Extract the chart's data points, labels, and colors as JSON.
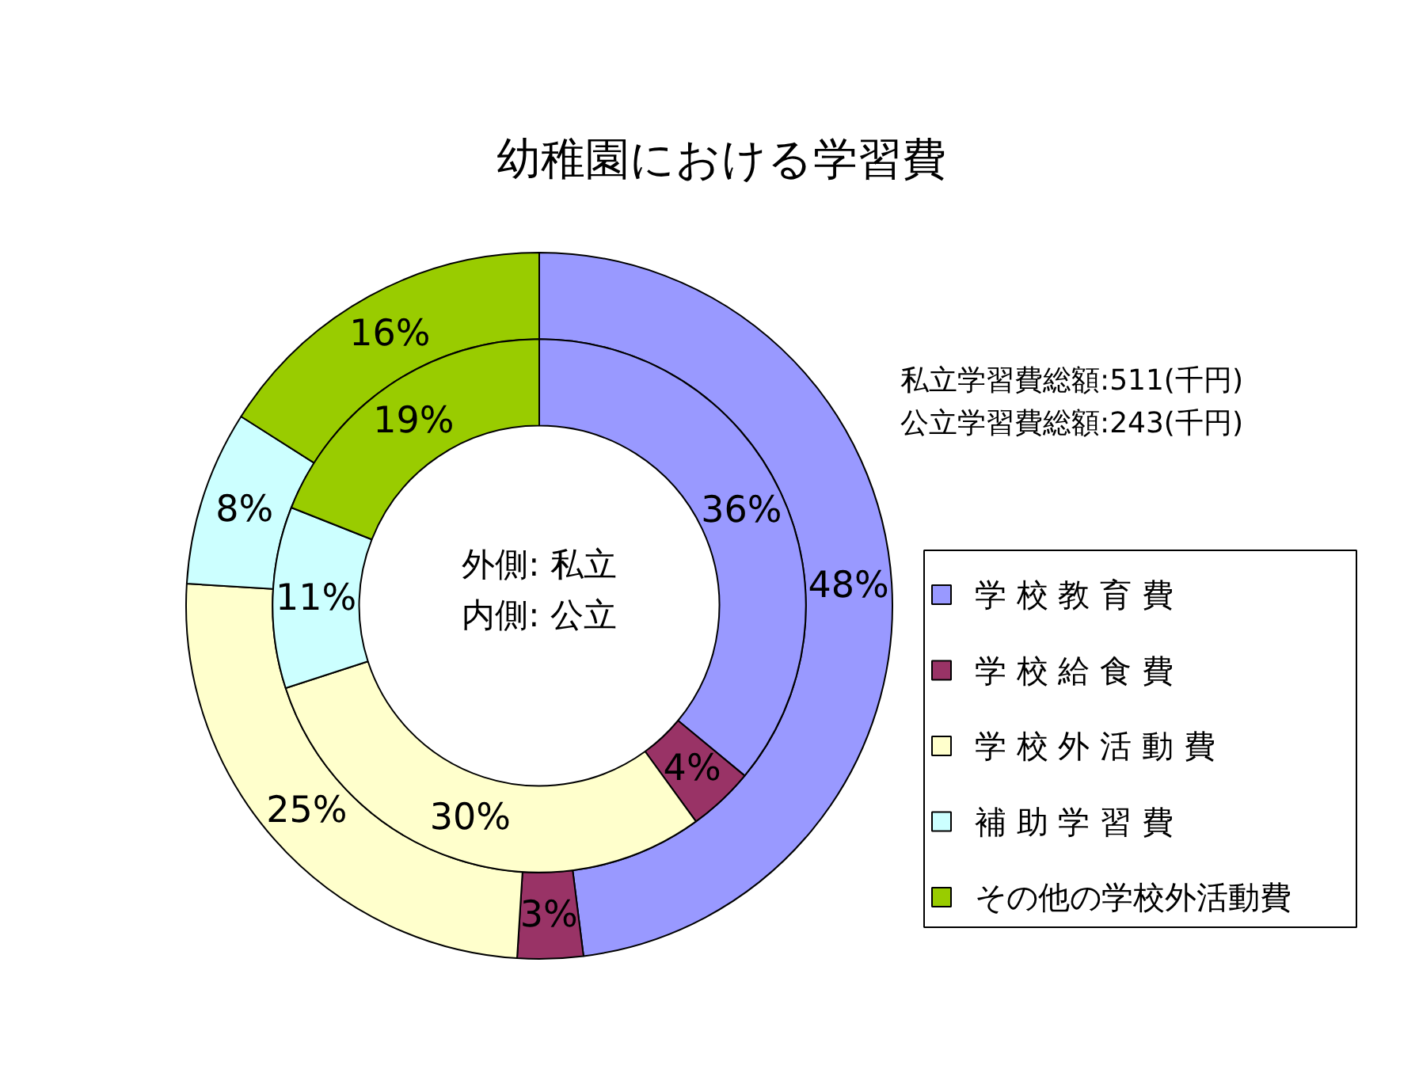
{
  "chart_data": {
    "type": "donut",
    "title": "幼稚園における学習費",
    "categories": [
      "学 校 教 育 費",
      "学 校 給 食 費",
      "学 校 外 活 動 費",
      "補 助 学 習 費",
      "その他の学校外活動費"
    ],
    "colors": [
      "#9999ff",
      "#993366",
      "#ffffcc",
      "#ccffff",
      "#99cc00"
    ],
    "series": [
      {
        "values": [
          48,
          3,
          25,
          8,
          16
        ],
        "value_labels": [
          "48%",
          "3%",
          "25%",
          "8%",
          "16%"
        ]
      },
      {
        "values": [
          36,
          4,
          30,
          11,
          19
        ],
        "value_labels": [
          "36%",
          "4%",
          "30%",
          "11%",
          "19%"
        ]
      }
    ],
    "annotations": [
      "私立学習費総額:511(千円)",
      "公立学習費総額:243(千円)",
      "外側: 私立",
      "内側: 公立"
    ],
    "legend": "right"
  }
}
